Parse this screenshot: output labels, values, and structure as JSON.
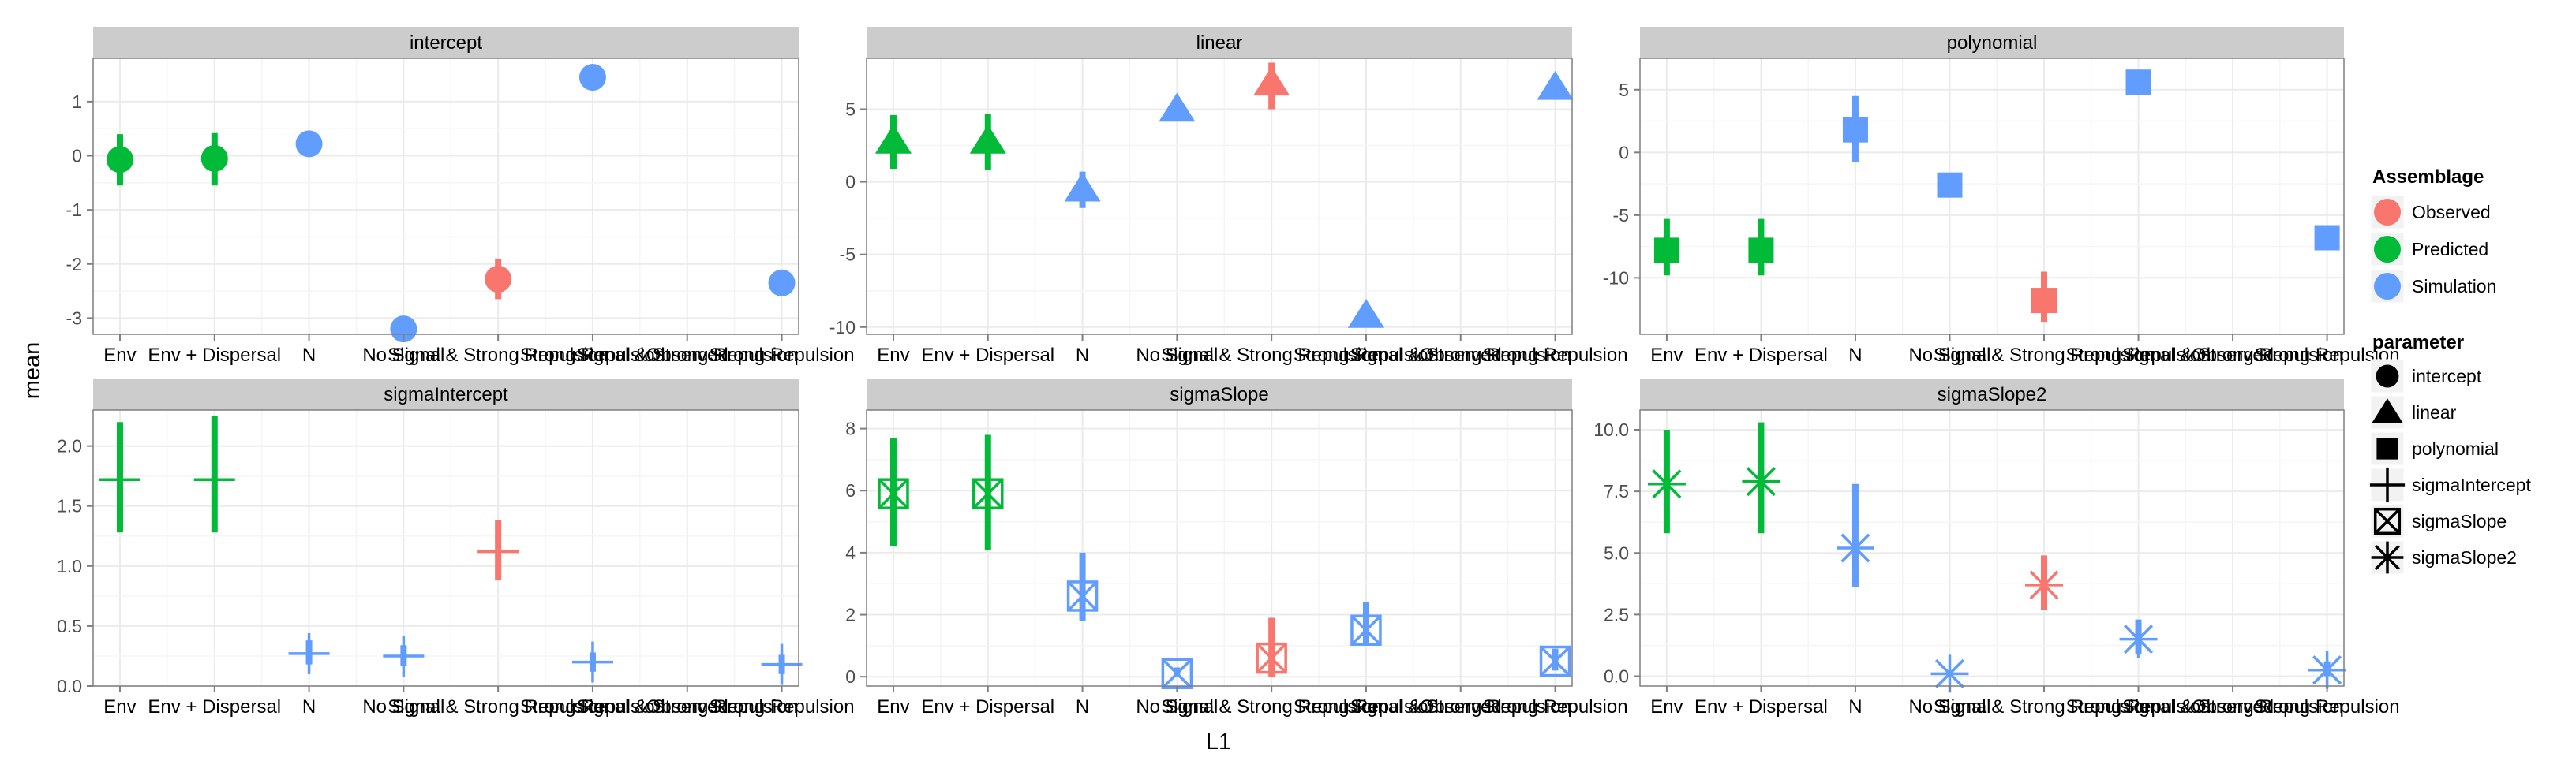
{
  "colors": {
    "Observed": "#F8766D",
    "Predicted": "#00BA38",
    "Simulation": "#619CFF",
    "panel_bg": "#FFFFFF",
    "strip_bg": "#CCCCCC",
    "grid": "#EBEBEB",
    "border": "#7F7F7F",
    "text": "#000000"
  },
  "chart_data": {
    "type": "scatter",
    "xlabel": "L1",
    "ylabel": "mean",
    "categories": [
      "Env",
      "Env + Dispersal",
      "N",
      "No Signal",
      "Signal & Strong Repulsion",
      "Strong Repulsion",
      "Observed",
      "Signal & Strong Repulsion",
      "Strong Repulsion"
    ],
    "x_tick_labels": [
      "Env",
      "Env + Dispersal",
      "N",
      "No Signal",
      "Signal & Strong Repulsion",
      "Strong Repulsion",
      "Observed",
      "Signal & Strong Repulsion",
      "Strong Repulsion"
    ],
    "panels": [
      {
        "title": "intercept",
        "shape": "intercept",
        "ylim": [
          -3.3,
          1.8
        ],
        "yticks": [
          1,
          0,
          -1,
          -2,
          -3
        ],
        "points": [
          {
            "x": "Env",
            "assemblage": "Predicted",
            "mean": -0.07,
            "lower": -0.55,
            "upper": 0.4
          },
          {
            "x": "Env + Dispersal",
            "assemblage": "Predicted",
            "mean": -0.05,
            "lower": -0.55,
            "upper": 0.42
          },
          {
            "x": "N",
            "assemblage": "Simulation",
            "mean": 0.22,
            "lower": 0.15,
            "upper": 0.3
          },
          {
            "x": "No Signal",
            "assemblage": "Simulation",
            "mean": -3.2,
            "lower": -3.25,
            "upper": -3.1
          },
          {
            "x": "Signal & Strong Repulsion",
            "assemblage": "Observed",
            "mean": -2.28,
            "lower": -2.65,
            "upper": -1.9
          },
          {
            "x": "Strong Repulsion",
            "assemblage": "Simulation",
            "mean": 1.45,
            "lower": 1.4,
            "upper": 1.5
          },
          {
            "x": "Strong Repulsion (2)",
            "assemblage": "Simulation",
            "mean": -2.35,
            "lower": -2.4,
            "upper": -2.3
          }
        ]
      },
      {
        "title": "linear",
        "shape": "linear",
        "ylim": [
          -10.5,
          8.5
        ],
        "yticks": [
          5,
          0,
          -5,
          -10
        ],
        "points": [
          {
            "x": "Env",
            "assemblage": "Predicted",
            "mean": 2.8,
            "lower": 0.9,
            "upper": 4.6
          },
          {
            "x": "Env + Dispersal",
            "assemblage": "Predicted",
            "mean": 2.8,
            "lower": 0.8,
            "upper": 4.7
          },
          {
            "x": "N",
            "assemblage": "Simulation",
            "mean": -0.5,
            "lower": -1.8,
            "upper": 0.7
          },
          {
            "x": "No Signal",
            "assemblage": "Simulation",
            "mean": 5.0,
            "lower": 4.8,
            "upper": 5.2
          },
          {
            "x": "Signal & Strong Repulsion",
            "assemblage": "Observed",
            "mean": 6.8,
            "lower": 5.0,
            "upper": 8.2
          },
          {
            "x": "Strong Repulsion",
            "assemblage": "Simulation",
            "mean": -9.2,
            "lower": -9.4,
            "upper": -9.0
          },
          {
            "x": "Strong Repulsion (2)",
            "assemblage": "Simulation",
            "mean": 6.5,
            "lower": 6.3,
            "upper": 6.7
          }
        ]
      },
      {
        "title": "polynomial",
        "shape": "polynomial",
        "ylim": [
          -14.5,
          7.5
        ],
        "yticks": [
          5,
          0,
          -5,
          -10
        ],
        "points": [
          {
            "x": "Env",
            "assemblage": "Predicted",
            "mean": -7.8,
            "lower": -9.8,
            "upper": -5.3
          },
          {
            "x": "Env + Dispersal",
            "assemblage": "Predicted",
            "mean": -7.8,
            "lower": -9.8,
            "upper": -5.3
          },
          {
            "x": "N",
            "assemblage": "Simulation",
            "mean": 1.8,
            "lower": -0.8,
            "upper": 4.5
          },
          {
            "x": "No Signal",
            "assemblage": "Simulation",
            "mean": -2.6,
            "lower": -2.8,
            "upper": -2.4
          },
          {
            "x": "Signal & Strong Repulsion",
            "assemblage": "Observed",
            "mean": -11.8,
            "lower": -13.5,
            "upper": -9.5
          },
          {
            "x": "Strong Repulsion",
            "assemblage": "Simulation",
            "mean": 5.6,
            "lower": 5.4,
            "upper": 5.8
          },
          {
            "x": "Strong Repulsion (2)",
            "assemblage": "Simulation",
            "mean": -6.8,
            "lower": -7.0,
            "upper": -6.6
          }
        ]
      },
      {
        "title": "sigmaIntercept",
        "shape": "sigmaIntercept",
        "ylim": [
          0,
          2.3
        ],
        "yticks": [
          2.0,
          1.5,
          1.0,
          0.5,
          0.0
        ],
        "ytick_format": 1,
        "points": [
          {
            "x": "Env",
            "assemblage": "Predicted",
            "mean": 1.72,
            "lower": 1.28,
            "upper": 2.2
          },
          {
            "x": "Env + Dispersal",
            "assemblage": "Predicted",
            "mean": 1.72,
            "lower": 1.28,
            "upper": 2.25
          },
          {
            "x": "N",
            "assemblage": "Simulation",
            "mean": 0.27,
            "lower": 0.18,
            "upper": 0.38
          },
          {
            "x": "No Signal",
            "assemblage": "Simulation",
            "mean": 0.25,
            "lower": 0.17,
            "upper": 0.34
          },
          {
            "x": "Signal & Strong Repulsion",
            "assemblage": "Observed",
            "mean": 1.12,
            "lower": 0.88,
            "upper": 1.38
          },
          {
            "x": "Strong Repulsion",
            "assemblage": "Simulation",
            "mean": 0.2,
            "lower": 0.12,
            "upper": 0.28
          },
          {
            "x": "Strong Repulsion (2)",
            "assemblage": "Simulation",
            "mean": 0.18,
            "lower": 0.1,
            "upper": 0.26
          }
        ]
      },
      {
        "title": "sigmaSlope",
        "shape": "sigmaSlope",
        "ylim": [
          -0.3,
          8.6
        ],
        "yticks": [
          8,
          6,
          4,
          2,
          0
        ],
        "points": [
          {
            "x": "Env",
            "assemblage": "Predicted",
            "mean": 5.9,
            "lower": 4.2,
            "upper": 7.7
          },
          {
            "x": "Env + Dispersal",
            "assemblage": "Predicted",
            "mean": 5.9,
            "lower": 4.1,
            "upper": 7.8
          },
          {
            "x": "N",
            "assemblage": "Simulation",
            "mean": 2.6,
            "lower": 1.8,
            "upper": 4.0
          },
          {
            "x": "No Signal",
            "assemblage": "Simulation",
            "mean": 0.1,
            "lower": 0.0,
            "upper": 0.3
          },
          {
            "x": "Signal & Strong Repulsion",
            "assemblage": "Observed",
            "mean": 0.6,
            "lower": 0.0,
            "upper": 1.9
          },
          {
            "x": "Strong Repulsion",
            "assemblage": "Simulation",
            "mean": 1.5,
            "lower": 1.0,
            "upper": 2.4
          },
          {
            "x": "Strong Repulsion (2)",
            "assemblage": "Simulation",
            "mean": 0.5,
            "lower": 0.2,
            "upper": 0.9
          }
        ]
      },
      {
        "title": "sigmaSlope2",
        "shape": "sigmaSlope2",
        "ylim": [
          -0.4,
          10.8
        ],
        "yticks": [
          10.0,
          7.5,
          5.0,
          2.5,
          0.0
        ],
        "ytick_format": 1,
        "points": [
          {
            "x": "Env",
            "assemblage": "Predicted",
            "mean": 7.8,
            "lower": 5.8,
            "upper": 10.0
          },
          {
            "x": "Env + Dispersal",
            "assemblage": "Predicted",
            "mean": 7.9,
            "lower": 5.8,
            "upper": 10.3
          },
          {
            "x": "N",
            "assemblage": "Simulation",
            "mean": 5.2,
            "lower": 3.6,
            "upper": 7.8
          },
          {
            "x": "No Signal",
            "assemblage": "Simulation",
            "mean": 0.1,
            "lower": 0.0,
            "upper": 0.2
          },
          {
            "x": "Signal & Strong Repulsion",
            "assemblage": "Observed",
            "mean": 3.7,
            "lower": 2.7,
            "upper": 4.9
          },
          {
            "x": "Strong Repulsion",
            "assemblage": "Simulation",
            "mean": 1.5,
            "lower": 0.9,
            "upper": 2.3
          },
          {
            "x": "Strong Repulsion (2)",
            "assemblage": "Simulation",
            "mean": 0.25,
            "lower": 0.0,
            "upper": 0.6
          }
        ]
      }
    ],
    "legends": [
      {
        "title": "Assemblage",
        "entries": [
          "Observed",
          "Predicted",
          "Simulation"
        ]
      },
      {
        "title": "parameter",
        "entries": [
          "intercept",
          "linear",
          "polynomial",
          "sigmaIntercept",
          "sigmaSlope",
          "sigmaSlope2"
        ]
      }
    ],
    "legend_placement": "right",
    "grid": true
  }
}
